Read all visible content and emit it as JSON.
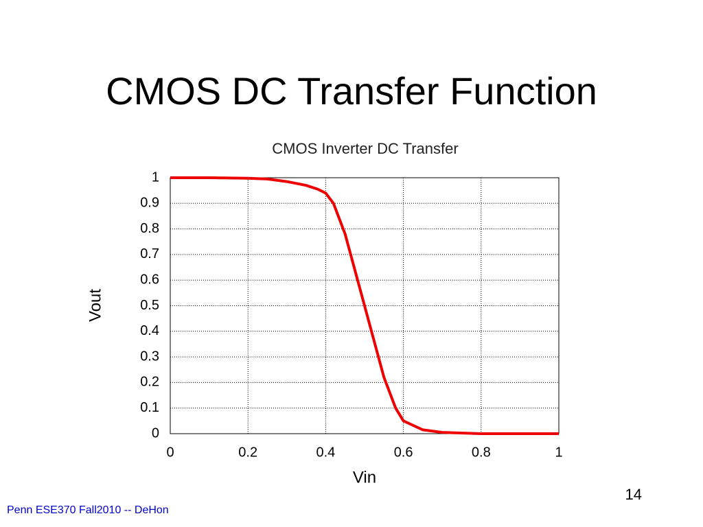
{
  "slide_title": "CMOS DC Transfer Function",
  "footer": "Penn ESE370 Fall2010 -- DeHon",
  "page_number": "14",
  "chart_data": {
    "type": "line",
    "title": "CMOS Inverter DC Transfer",
    "x_label": "Vin",
    "y_label": "Vout",
    "x": [
      0,
      0.1,
      0.2,
      0.25,
      0.3,
      0.35,
      0.38,
      0.4,
      0.42,
      0.45,
      0.5,
      0.55,
      0.58,
      0.6,
      0.65,
      0.7,
      0.8,
      0.9,
      1
    ],
    "values": [
      1,
      1,
      0.998,
      0.995,
      0.985,
      0.97,
      0.955,
      0.94,
      0.9,
      0.78,
      0.5,
      0.22,
      0.1,
      0.05,
      0.015,
      0.005,
      0,
      0,
      0
    ],
    "color": "#ee0000",
    "xlim": [
      0,
      1
    ],
    "ylim": [
      0,
      1
    ],
    "xticks": [
      0,
      0.2,
      0.4,
      0.6,
      0.8,
      1
    ],
    "yticks": [
      0,
      0.1,
      0.2,
      0.3,
      0.4,
      0.5,
      0.6,
      0.7,
      0.8,
      0.9,
      1
    ],
    "grid": true
  }
}
